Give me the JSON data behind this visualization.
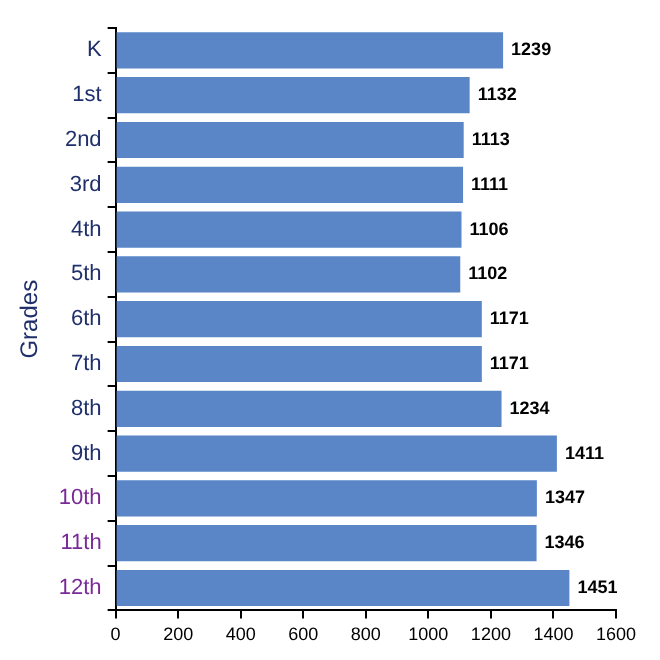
{
  "chart_data": {
    "type": "bar",
    "orientation": "horizontal",
    "ylabel": "Grades",
    "categories": [
      "K",
      "1st",
      "2nd",
      "3rd",
      "4th",
      "5th",
      "6th",
      "7th",
      "8th",
      "9th",
      "10th",
      "11th",
      "12th"
    ],
    "values": [
      1239,
      1132,
      1113,
      1111,
      1106,
      1102,
      1171,
      1171,
      1234,
      1411,
      1347,
      1346,
      1451
    ],
    "color": "#5a86c8",
    "xlim": [
      0,
      1600
    ],
    "xticks": [
      0,
      200,
      400,
      600,
      800,
      1000,
      1200,
      1400,
      1600
    ],
    "data_labels": true,
    "grid": false,
    "legend": false
  }
}
